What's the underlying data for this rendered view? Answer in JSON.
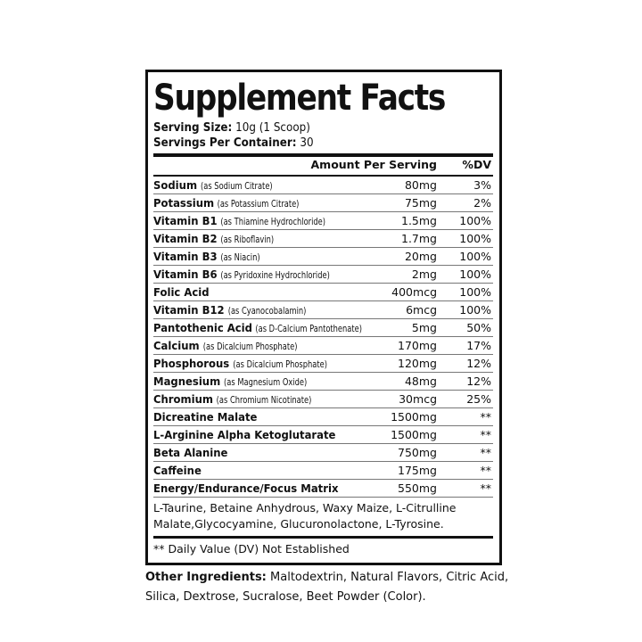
{
  "title": "Supplement Facts",
  "serving_size": {
    "label": "Serving Size:",
    "value": "10g (1 Scoop)"
  },
  "servings_per_container": {
    "label": "Servings Per Container:",
    "value": "30"
  },
  "header": {
    "amount": "Amount Per Serving",
    "dv": "%DV"
  },
  "rows": [
    {
      "name": "Sodium",
      "source": "(as Sodium Citrate)",
      "amount": "80mg",
      "dv": "3%"
    },
    {
      "name": "Potassium",
      "source": "(as Potassium Citrate)",
      "amount": "75mg",
      "dv": "2%"
    },
    {
      "name": "Vitamin B1",
      "source": "(as Thiamine Hydrochloride)",
      "amount": "1.5mg",
      "dv": "100%"
    },
    {
      "name": "Vitamin B2",
      "source": "(as Riboflavin)",
      "amount": "1.7mg",
      "dv": "100%"
    },
    {
      "name": "Vitamin B3",
      "source": "(as Niacin)",
      "amount": "20mg",
      "dv": "100%"
    },
    {
      "name": "Vitamin B6",
      "source": "(as Pyridoxine Hydrochloride)",
      "amount": "2mg",
      "dv": "100%"
    },
    {
      "name": "Folic Acid",
      "source": "",
      "amount": "400mcg",
      "dv": "100%"
    },
    {
      "name": "Vitamin B12",
      "source": "(as Cyanocobalamin)",
      "amount": "6mcg",
      "dv": "100%"
    },
    {
      "name": "Pantothenic Acid",
      "source": "(as D-Calcium Pantothenate)",
      "amount": "5mg",
      "dv": "50%"
    },
    {
      "name": "Calcium",
      "source": "(as Dicalcium Phosphate)",
      "amount": "170mg",
      "dv": "17%"
    },
    {
      "name": "Phosphorous",
      "source": "(as Dicalcium Phosphate)",
      "amount": "120mg",
      "dv": "12%"
    },
    {
      "name": "Magnesium",
      "source": "(as Magnesium Oxide)",
      "amount": "48mg",
      "dv": "12%"
    },
    {
      "name": "Chromium",
      "source": "(as Chromium Nicotinate)",
      "amount": "30mcg",
      "dv": "25%"
    },
    {
      "name": "Dicreatine Malate",
      "source": "",
      "amount": "1500mg",
      "dv": "**"
    },
    {
      "name": "L-Arginine Alpha Ketoglutarate",
      "source": "",
      "amount": "1500mg",
      "dv": "**"
    },
    {
      "name": "Beta Alanine",
      "source": "",
      "amount": "750mg",
      "dv": "**"
    },
    {
      "name": "Caffeine",
      "source": "",
      "amount": "175mg",
      "dv": "**"
    },
    {
      "name": "Energy/Endurance/Focus Matrix",
      "source": "",
      "amount": "550mg",
      "dv": "**"
    }
  ],
  "matrix_ingredients": "L-Taurine, Betaine Anhydrous, Waxy Maize,  L-Citrulline Malate,Glycocyamine, Glucuronolactone, L-Tyrosine.",
  "footnote": "** Daily Value (DV) Not Established",
  "other_ingredients": {
    "label": "Other Ingredients:",
    "value": "Maltodextrin, Natural Flavors, Citric Acid, Silica, Dextrose, Sucralose, Beet Powder (Color)."
  }
}
